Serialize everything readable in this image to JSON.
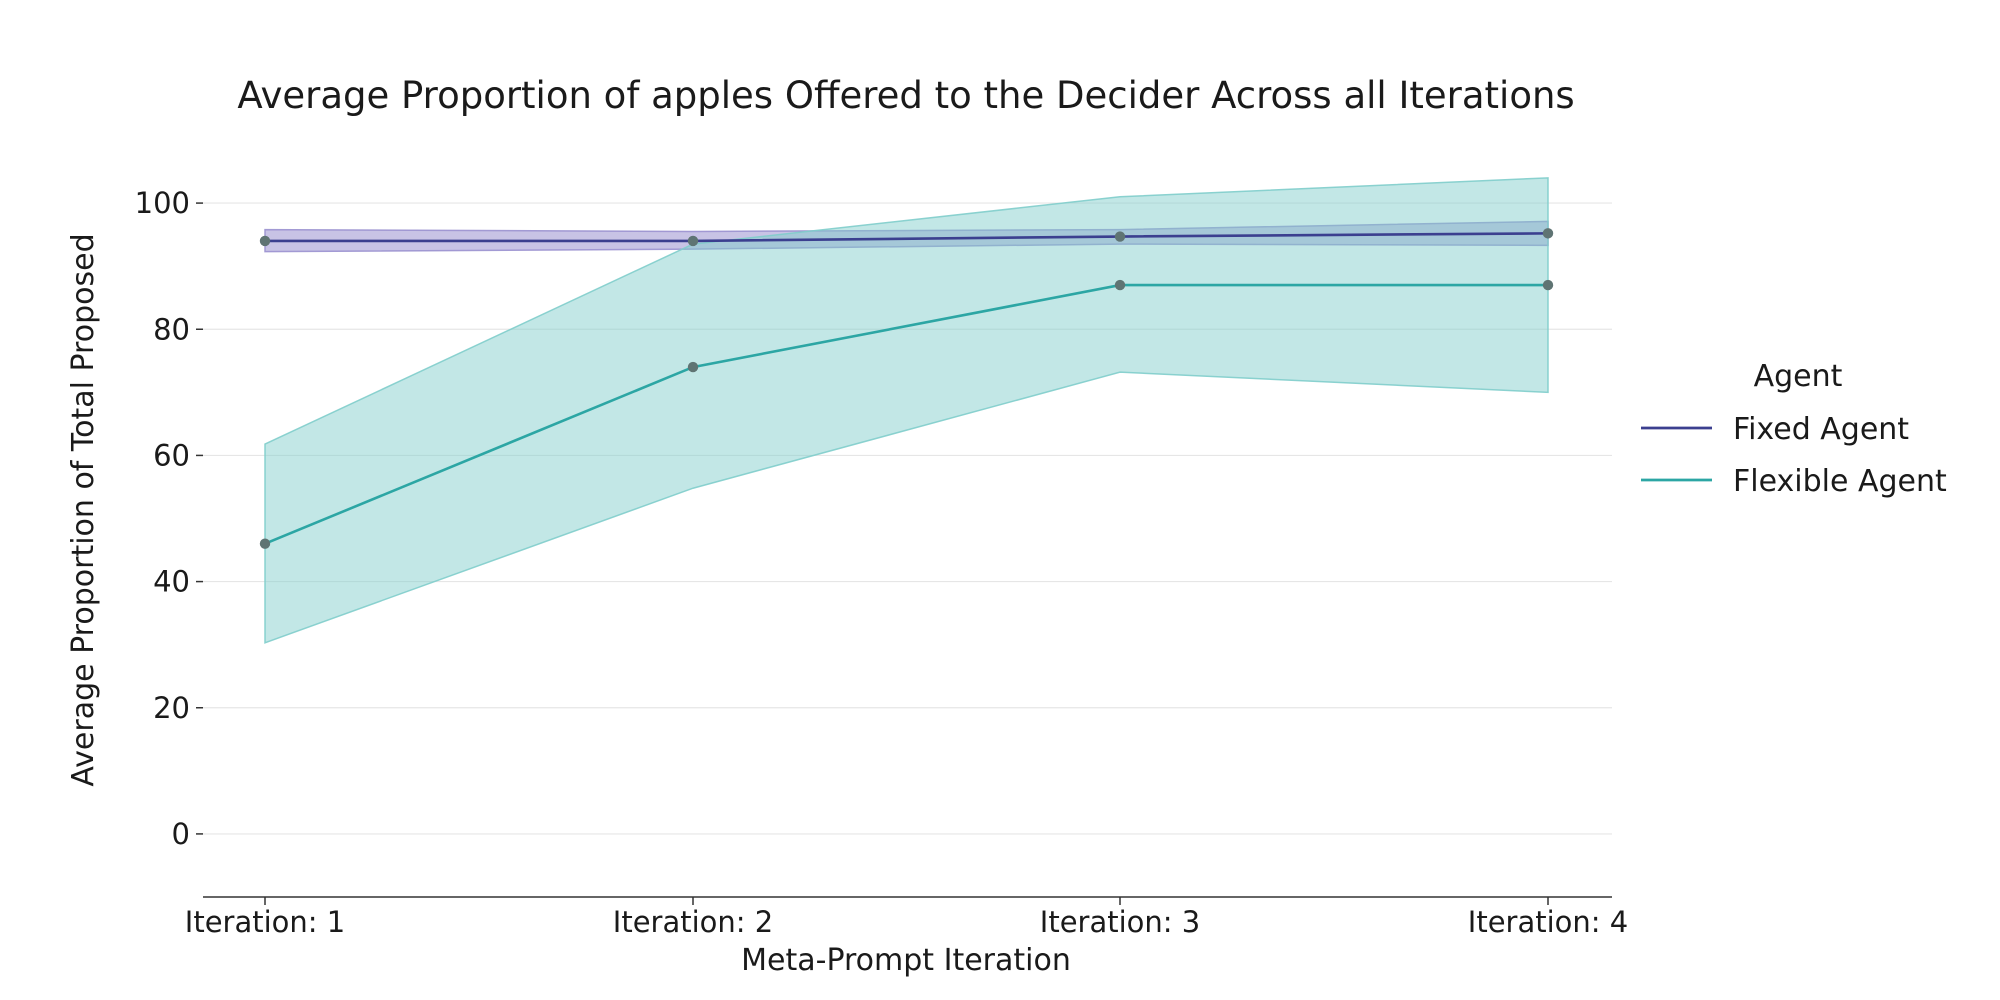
{
  "chart_data": {
    "type": "line",
    "title": "Average Proportion of apples Offered to the Decider Across all Iterations",
    "xlabel": "Meta-Prompt Iteration",
    "ylabel": "Average Proportion of Total Proposed",
    "categories": [
      "Iteration: 1",
      "Iteration: 2",
      "Iteration: 3",
      "Iteration: 4"
    ],
    "ylim": [
      -10,
      110
    ],
    "yticks": [
      0,
      20,
      40,
      60,
      80,
      100
    ],
    "grid": "horizontal",
    "legend": {
      "title": "Agent",
      "placement": "right"
    },
    "series": [
      {
        "name": "Fixed Agent",
        "color": "#3b3f8f",
        "band_color": "#9a91cf",
        "values": [
          94,
          94,
          94.7,
          95.2
        ],
        "lower": [
          92.3,
          92.7,
          93.5,
          93.3
        ],
        "upper": [
          95.8,
          95.5,
          95.8,
          97.1
        ]
      },
      {
        "name": "Flexible Agent",
        "color": "#2ca6a4",
        "band_color": "#7fcdcb",
        "values": [
          46,
          74,
          87,
          87
        ],
        "lower": [
          30.3,
          54.8,
          73.2,
          70
        ],
        "upper": [
          61.8,
          93.5,
          101,
          104
        ]
      }
    ]
  }
}
